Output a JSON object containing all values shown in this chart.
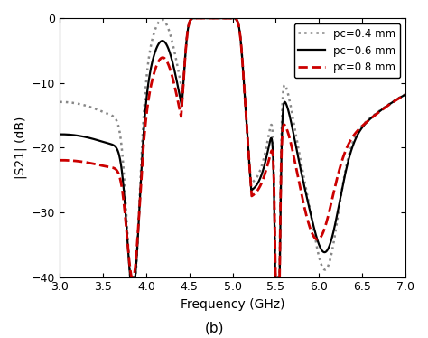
{
  "title": "",
  "xlabel": "Frequency (GHz)",
  "ylabel": "|S21| (dB)",
  "label_b": "(b)",
  "xlim": [
    3.0,
    7.0
  ],
  "ylim": [
    -40,
    0
  ],
  "xticks": [
    3.0,
    3.5,
    4.0,
    4.5,
    5.0,
    5.5,
    6.0,
    6.5,
    7.0
  ],
  "yticks": [
    -40,
    -30,
    -20,
    -10,
    0
  ],
  "legend": [
    {
      "label": "pc=0.4 mm",
      "color": "#888888",
      "style": "dotted",
      "lw": 1.8
    },
    {
      "label": "pc=0.6 mm",
      "color": "#000000",
      "style": "solid",
      "lw": 1.6
    },
    {
      "label": "pc=0.8 mm",
      "color": "#cc0000",
      "style": "dashed",
      "lw": 2.0
    }
  ],
  "background_color": "#ffffff"
}
